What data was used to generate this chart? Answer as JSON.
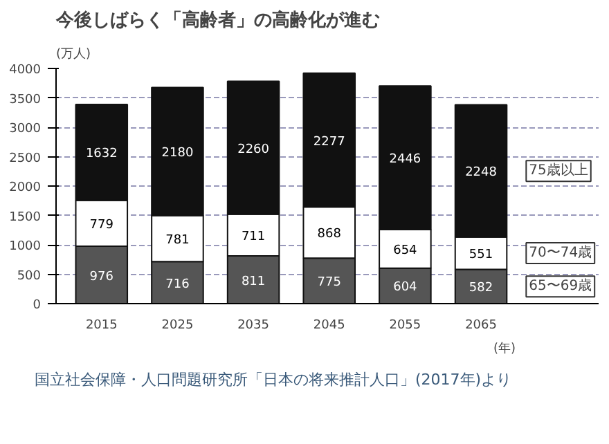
{
  "chart_data": {
    "type": "bar",
    "title": "今後しばらく「高齢者」の高齢化が進む",
    "categories": [
      "2015",
      "2025",
      "2035",
      "2045",
      "2055",
      "2065"
    ],
    "stacked": true,
    "series": [
      {
        "name": "65〜69歳",
        "color": "#555555",
        "values": [
          976,
          716,
          811,
          775,
          604,
          582
        ]
      },
      {
        "name": "70〜74歳",
        "color": "#ffffff",
        "values": [
          779,
          781,
          711,
          868,
          654,
          551
        ]
      },
      {
        "name": "75歳以上",
        "color": "#111111",
        "values": [
          1632,
          2180,
          2260,
          2277,
          2446,
          2248
        ]
      }
    ],
    "ylim": [
      0,
      4000
    ],
    "yticks": [
      0,
      500,
      1000,
      1500,
      2000,
      2500,
      3000,
      3500,
      4000
    ],
    "ylabel": "(万人)",
    "xlabel": "(年)",
    "grid": "y",
    "data_labels": true,
    "legend": false,
    "annotations": [
      "国立社会保障・人口問題研究所「日本の将来推計人口」(2017年)より"
    ]
  }
}
